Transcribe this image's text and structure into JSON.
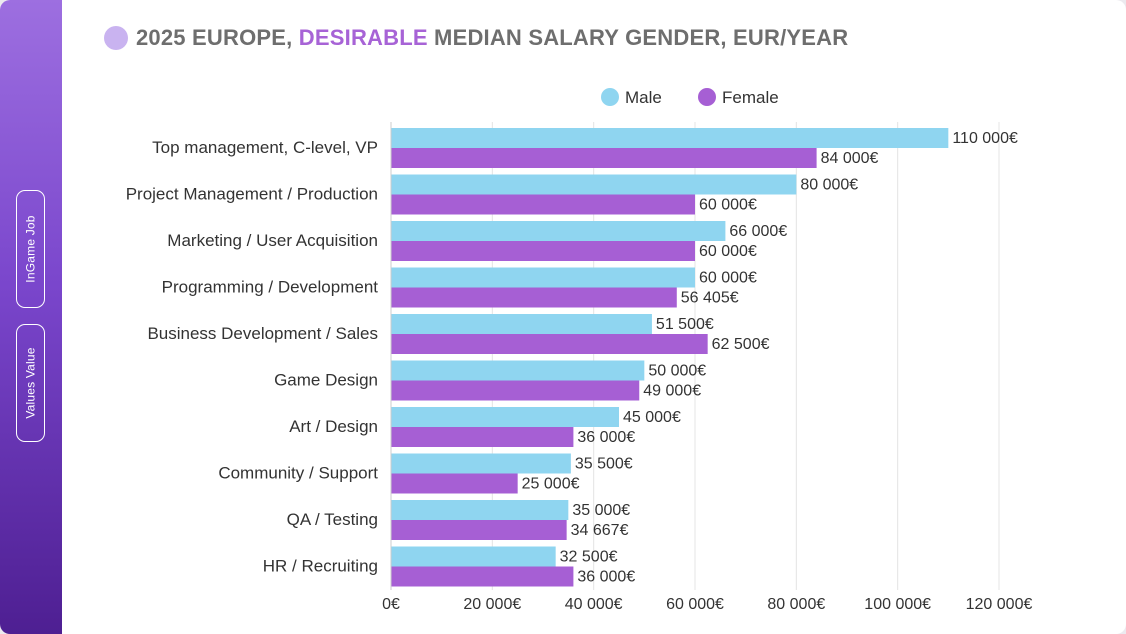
{
  "sidebar": {
    "tabs": [
      {
        "label": "InGame Job"
      },
      {
        "label": "Values Value"
      }
    ]
  },
  "header": {
    "title_prefix": "2025 EUROPE, ",
    "title_accent": "DESIRABLE",
    "title_suffix": " MEDIAN SALARY GENDER, EUR/YEAR"
  },
  "colors": {
    "male": "#8fd5f0",
    "female": "#a65fd4",
    "accent": "#a763d6",
    "grid": "#e4e4e4"
  },
  "chart_data": {
    "type": "bar",
    "orientation": "horizontal",
    "categories": [
      "Top management, C-level, VP",
      "Project Management / Production",
      "Marketing / User Acquisition",
      "Programming / Development",
      "Business Development / Sales",
      "Game Design",
      "Art / Design",
      "Community / Support",
      "QA / Testing",
      "HR / Recruiting"
    ],
    "series": [
      {
        "name": "Male",
        "values": [
          110000,
          80000,
          66000,
          60000,
          51500,
          50000,
          45000,
          35500,
          35000,
          32500
        ],
        "labels": [
          "110 000€",
          "80 000€",
          "66 000€",
          "60 000€",
          "51 500€",
          "50 000€",
          "45 000€",
          "35 500€",
          "35 000€",
          "32 500€"
        ]
      },
      {
        "name": "Female",
        "values": [
          84000,
          60000,
          60000,
          56405,
          62500,
          49000,
          36000,
          25000,
          34667,
          36000
        ],
        "labels": [
          "84 000€",
          "60 000€",
          "60 000€",
          "56 405€",
          "62 500€",
          "49 000€",
          "36 000€",
          "25 000€",
          "34 667€",
          "36 000€"
        ]
      }
    ],
    "xlim": [
      0,
      120000
    ],
    "xticks": [
      0,
      20000,
      40000,
      60000,
      80000,
      100000,
      120000
    ],
    "xtick_labels": [
      "0€",
      "20 000€",
      "40 000€",
      "60 000€",
      "80 000€",
      "100 000€",
      "120 000€"
    ],
    "legend": "top-center",
    "grid": true,
    "title": "2025 EUROPE, DESIRABLE MEDIAN SALARY GENDER, EUR/YEAR"
  }
}
